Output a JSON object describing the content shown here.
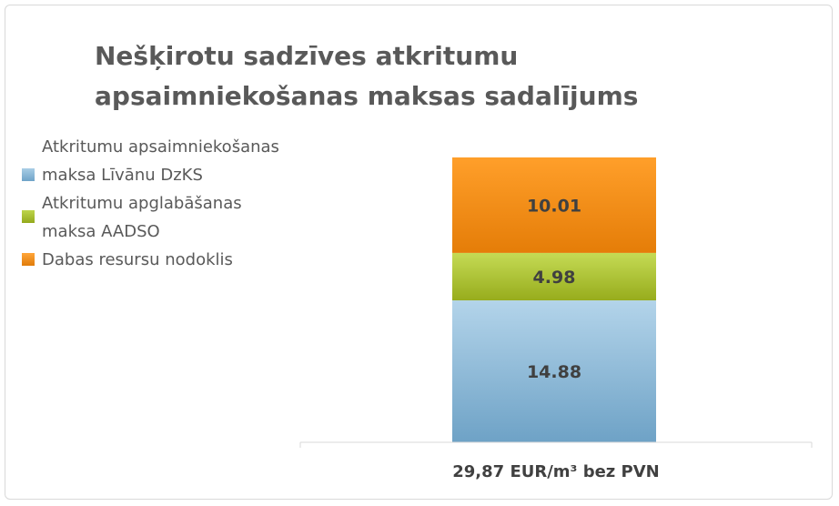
{
  "chart_data": {
    "type": "bar",
    "stacked": true,
    "title": "Nešķirotu sadzīves atkritumu apsaimniekošanas maksas sadalījums",
    "categories": [
      "29,87 EUR/m³ bez PVN"
    ],
    "series": [
      {
        "name": "Atkritumu apsaimniekošanas maksa Līvānu DzKS",
        "values": [
          14.88
        ],
        "color": "#7fb2d6",
        "label": "14.88"
      },
      {
        "name": "Atkritumu apglabāšanas maksa AADSO",
        "values": [
          4.98
        ],
        "color": "#a6bf2b",
        "label": "4.98"
      },
      {
        "name": "Dabas resursu nodoklis",
        "values": [
          10.01
        ],
        "color": "#f58a12",
        "label": "10.01"
      }
    ],
    "legend_position": "left",
    "grid": false
  }
}
